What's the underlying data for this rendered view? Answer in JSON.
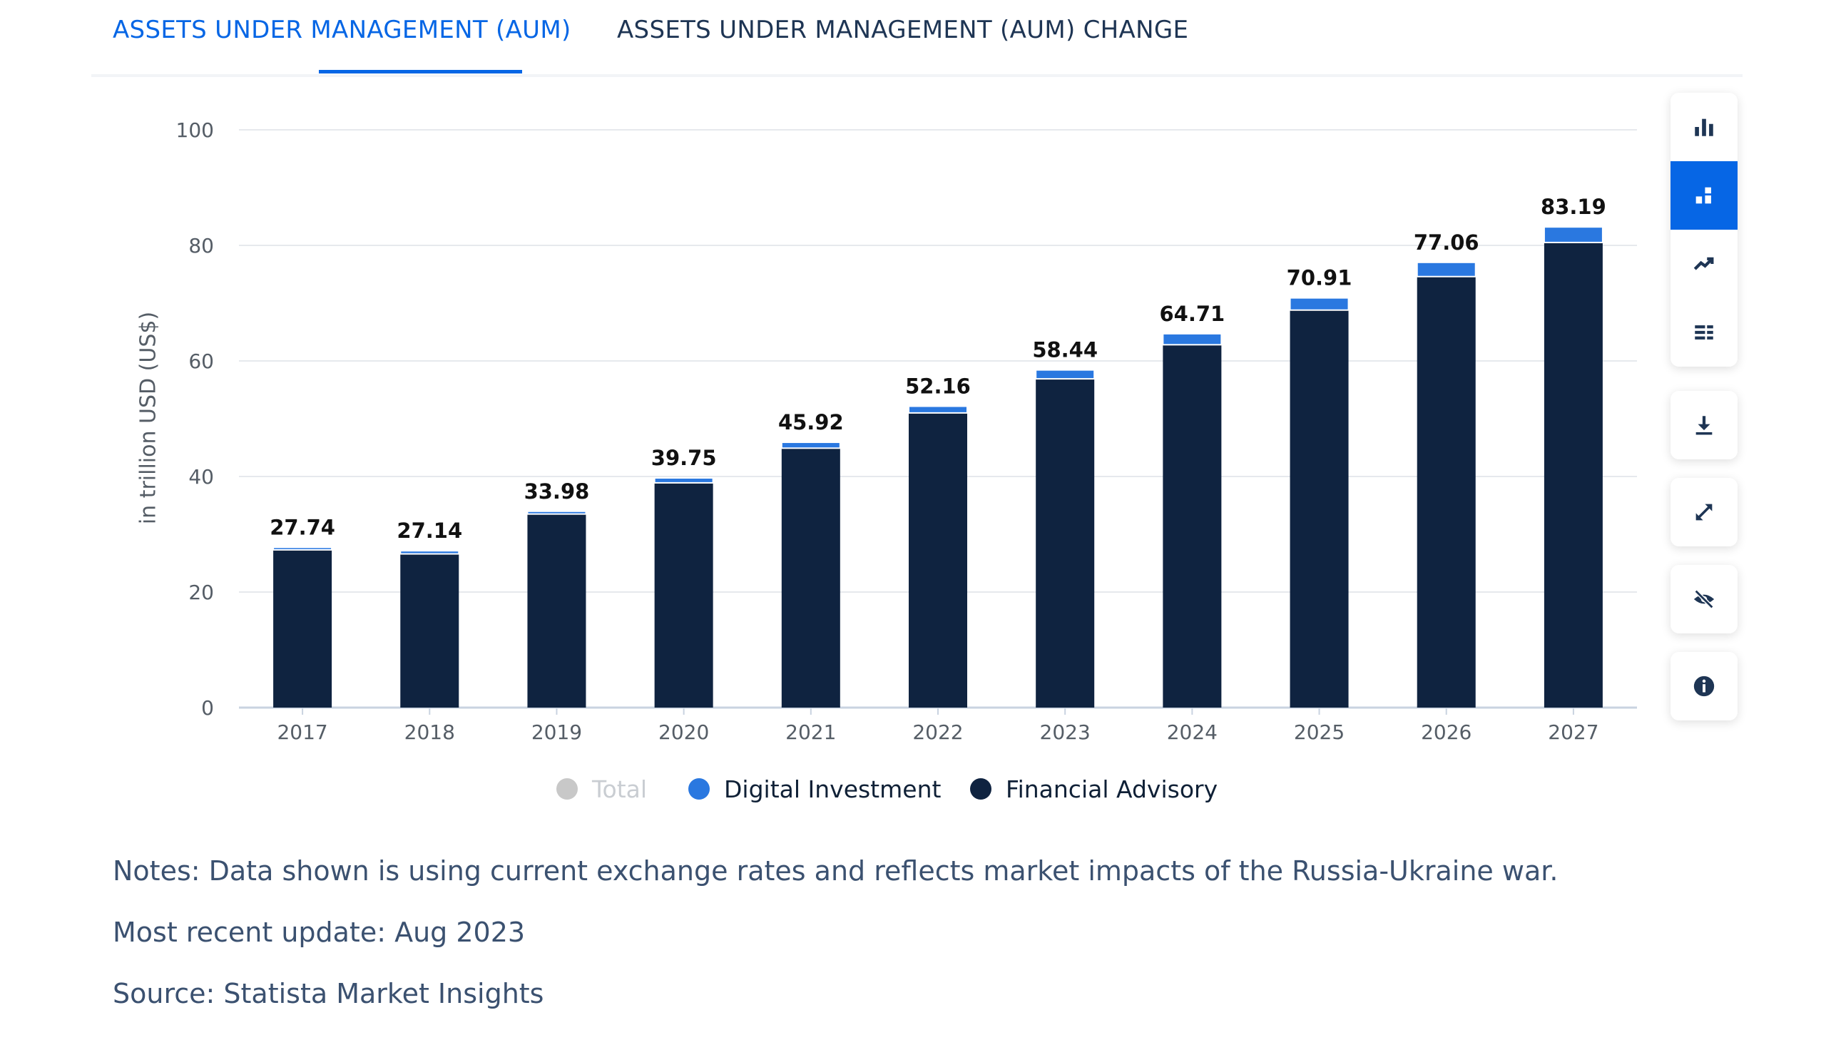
{
  "tabs": [
    {
      "label": "ASSETS UNDER MANAGEMENT (AUM)",
      "active": true
    },
    {
      "label": "ASSETS UNDER MANAGEMENT (AUM) CHANGE",
      "active": false
    }
  ],
  "toolbar": {
    "tools": [
      {
        "icon": "bar-chart-icon",
        "active": false
      },
      {
        "icon": "stacked-bar-icon",
        "active": true
      },
      {
        "icon": "trend-line-icon",
        "active": false
      },
      {
        "icon": "table-icon",
        "active": false
      }
    ],
    "actions": [
      "download-icon",
      "fullscreen-icon",
      "hide-icon",
      "info-icon"
    ]
  },
  "chart_data": {
    "type": "bar",
    "stacked": true,
    "ylabel": "in trillion USD (US$)",
    "ylim": [
      0,
      100
    ],
    "yticks": [
      0,
      20,
      40,
      60,
      80,
      100
    ],
    "grid": true,
    "legend_position": "bottom",
    "categories": [
      "2017",
      "2018",
      "2019",
      "2020",
      "2021",
      "2022",
      "2023",
      "2024",
      "2025",
      "2026",
      "2027"
    ],
    "totals": [
      27.74,
      27.14,
      33.98,
      39.75,
      45.92,
      52.16,
      58.44,
      64.71,
      70.91,
      77.06,
      83.19
    ],
    "series": [
      {
        "name": "Financial Advisory",
        "color": "#0f2340",
        "values": [
          27.3,
          26.6,
          33.5,
          38.9,
          44.9,
          51.0,
          56.9,
          62.8,
          68.8,
          74.6,
          80.5
        ]
      },
      {
        "name": "Digital Investment",
        "color": "#2a78e0",
        "values": [
          0.44,
          0.54,
          0.48,
          0.85,
          1.02,
          1.16,
          1.54,
          1.91,
          2.11,
          2.46,
          2.69
        ]
      }
    ],
    "legend": [
      {
        "name": "Total",
        "color": "#c8c8c8",
        "hidden": true
      },
      {
        "name": "Digital Investment",
        "color": "#2a78e0",
        "hidden": false
      },
      {
        "name": "Financial Advisory",
        "color": "#0f2340",
        "hidden": false
      }
    ]
  },
  "notes": {
    "note": "Notes: Data shown is using current exchange rates and reflects market impacts of the Russia-Ukraine war.",
    "update": "Most recent update: Aug 2023",
    "source": "Source: Statista Market Insights"
  }
}
